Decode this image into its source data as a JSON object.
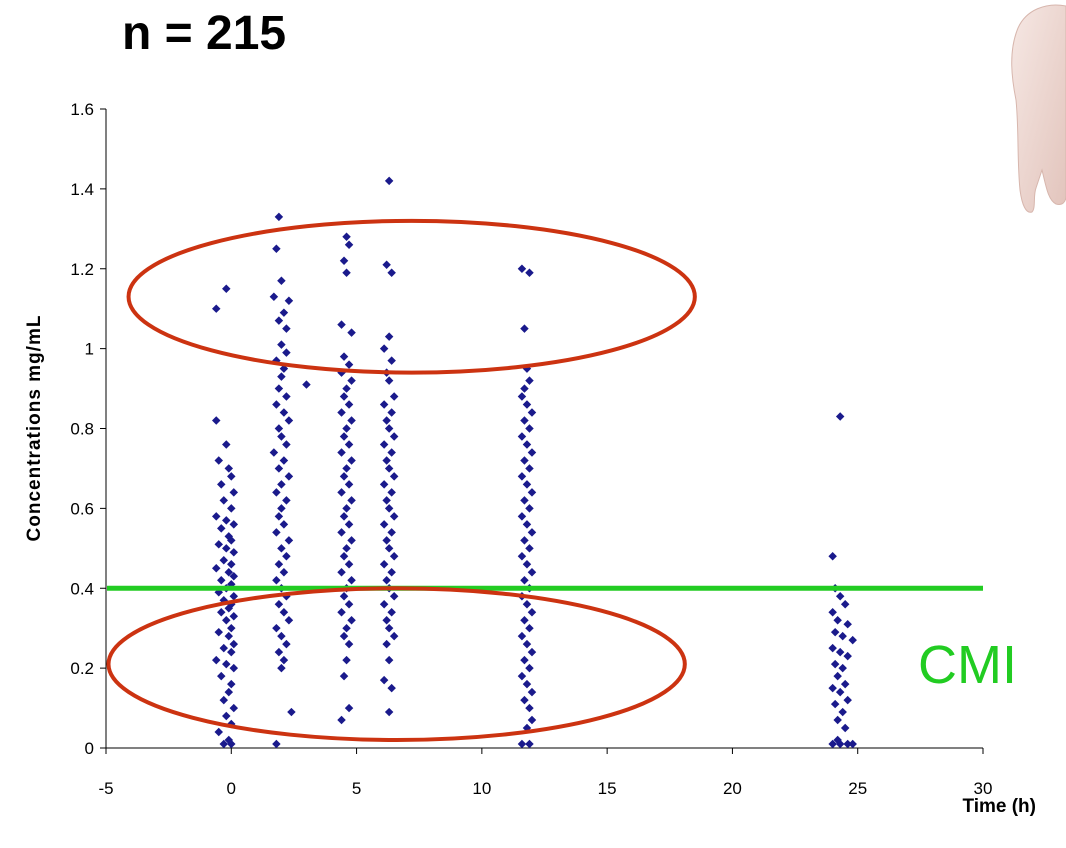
{
  "header": {
    "n_label": "n = 215"
  },
  "chart_data": {
    "type": "scatter",
    "title": "n = 215",
    "xlabel": "Time (h)",
    "ylabel": "Concentrations mg/mL",
    "xlim": [
      -5,
      30
    ],
    "ylim": [
      0,
      1.6
    ],
    "x_ticks": [
      -5,
      0,
      5,
      10,
      15,
      20,
      25,
      30
    ],
    "y_ticks": [
      0,
      0.2,
      0.4,
      0.6,
      0.8,
      1,
      1.2,
      1.4,
      1.6
    ],
    "y_tick_labels": [
      "0",
      "0.2",
      "0.4",
      "0.6",
      "0.8",
      "1",
      "1.2",
      "1.4",
      "1.6"
    ],
    "grid": false,
    "marker_color": "#1a1a8c",
    "threshold": {
      "y": 0.4,
      "label": "CMI",
      "color": "#22cc22"
    },
    "ellipse_color": "#cc3311",
    "highlight_regions": [
      {
        "cx": 7.2,
        "cy": 1.13,
        "rx": 11.3,
        "ry": 0.19
      },
      {
        "cx": 6.6,
        "cy": 0.21,
        "rx": 11.5,
        "ry": 0.19
      }
    ],
    "series": [
      {
        "points": [
          [
            -0.6,
            0.82
          ],
          [
            -0.2,
            0.76
          ],
          [
            -0.5,
            0.72
          ],
          [
            -0.1,
            0.7
          ],
          [
            0.0,
            0.68
          ],
          [
            -0.4,
            0.66
          ],
          [
            0.1,
            0.64
          ],
          [
            -0.3,
            0.62
          ],
          [
            0.0,
            0.6
          ],
          [
            -0.6,
            0.58
          ],
          [
            -0.2,
            0.57
          ],
          [
            0.1,
            0.56
          ],
          [
            -0.4,
            0.55
          ],
          [
            -0.1,
            0.53
          ],
          [
            0.0,
            0.52
          ],
          [
            -0.5,
            0.51
          ],
          [
            -0.2,
            0.5
          ],
          [
            0.1,
            0.49
          ],
          [
            -0.3,
            0.47
          ],
          [
            0.0,
            0.46
          ],
          [
            -0.6,
            0.45
          ],
          [
            -0.1,
            0.44
          ],
          [
            0.1,
            0.43
          ],
          [
            -0.4,
            0.42
          ],
          [
            0.0,
            0.41
          ],
          [
            -0.2,
            0.4
          ],
          [
            -0.5,
            0.39
          ],
          [
            0.1,
            0.38
          ],
          [
            -0.3,
            0.37
          ],
          [
            0.0,
            0.36
          ],
          [
            -0.1,
            0.35
          ],
          [
            -0.4,
            0.34
          ],
          [
            0.1,
            0.33
          ],
          [
            -0.2,
            0.32
          ],
          [
            0.0,
            0.3
          ],
          [
            -0.5,
            0.29
          ],
          [
            -0.1,
            0.28
          ],
          [
            0.1,
            0.26
          ],
          [
            -0.3,
            0.25
          ],
          [
            0.0,
            0.24
          ],
          [
            -0.6,
            0.22
          ],
          [
            -0.2,
            0.21
          ],
          [
            0.1,
            0.2
          ],
          [
            -0.4,
            0.18
          ],
          [
            0.0,
            0.16
          ],
          [
            -0.1,
            0.14
          ],
          [
            -0.3,
            0.12
          ],
          [
            0.1,
            0.1
          ],
          [
            -0.2,
            0.08
          ],
          [
            0.0,
            0.06
          ],
          [
            -0.5,
            0.04
          ],
          [
            -0.1,
            0.02
          ],
          [
            0.0,
            0.01
          ],
          [
            -0.3,
            0.01
          ],
          [
            -0.6,
            1.1
          ],
          [
            -0.2,
            1.15
          ],
          [
            1.9,
            1.33
          ],
          [
            1.8,
            1.25
          ],
          [
            2.0,
            1.17
          ],
          [
            1.7,
            1.13
          ],
          [
            2.3,
            1.12
          ],
          [
            2.1,
            1.09
          ],
          [
            1.9,
            1.07
          ],
          [
            2.2,
            1.05
          ],
          [
            2.0,
            1.01
          ],
          [
            2.2,
            0.99
          ],
          [
            1.8,
            0.97
          ],
          [
            2.1,
            0.95
          ],
          [
            3.0,
            0.91
          ],
          [
            2.0,
            0.93
          ],
          [
            1.9,
            0.9
          ],
          [
            2.2,
            0.88
          ],
          [
            1.8,
            0.86
          ],
          [
            2.1,
            0.84
          ],
          [
            2.3,
            0.82
          ],
          [
            1.9,
            0.8
          ],
          [
            2.0,
            0.78
          ],
          [
            2.2,
            0.76
          ],
          [
            1.7,
            0.74
          ],
          [
            2.1,
            0.72
          ],
          [
            1.9,
            0.7
          ],
          [
            2.3,
            0.68
          ],
          [
            2.0,
            0.66
          ],
          [
            1.8,
            0.64
          ],
          [
            2.2,
            0.62
          ],
          [
            2.0,
            0.6
          ],
          [
            1.9,
            0.58
          ],
          [
            2.1,
            0.56
          ],
          [
            1.8,
            0.54
          ],
          [
            2.3,
            0.52
          ],
          [
            2.0,
            0.5
          ],
          [
            2.2,
            0.48
          ],
          [
            1.9,
            0.46
          ],
          [
            2.1,
            0.44
          ],
          [
            1.8,
            0.42
          ],
          [
            2.0,
            0.4
          ],
          [
            2.2,
            0.38
          ],
          [
            1.9,
            0.36
          ],
          [
            2.1,
            0.34
          ],
          [
            2.3,
            0.32
          ],
          [
            1.8,
            0.3
          ],
          [
            2.0,
            0.28
          ],
          [
            2.2,
            0.26
          ],
          [
            1.9,
            0.24
          ],
          [
            2.1,
            0.22
          ],
          [
            2.0,
            0.2
          ],
          [
            2.4,
            0.09
          ],
          [
            1.8,
            0.01
          ],
          [
            4.6,
            1.28
          ],
          [
            4.7,
            1.26
          ],
          [
            4.5,
            1.22
          ],
          [
            4.6,
            1.19
          ],
          [
            4.4,
            1.06
          ],
          [
            4.8,
            1.04
          ],
          [
            4.5,
            0.98
          ],
          [
            4.7,
            0.96
          ],
          [
            4.4,
            0.94
          ],
          [
            4.8,
            0.92
          ],
          [
            4.6,
            0.9
          ],
          [
            4.5,
            0.88
          ],
          [
            4.7,
            0.86
          ],
          [
            4.4,
            0.84
          ],
          [
            4.8,
            0.82
          ],
          [
            4.6,
            0.8
          ],
          [
            4.5,
            0.78
          ],
          [
            4.7,
            0.76
          ],
          [
            4.4,
            0.74
          ],
          [
            4.8,
            0.72
          ],
          [
            4.6,
            0.7
          ],
          [
            4.5,
            0.68
          ],
          [
            4.7,
            0.66
          ],
          [
            4.4,
            0.64
          ],
          [
            4.8,
            0.62
          ],
          [
            4.6,
            0.6
          ],
          [
            4.5,
            0.58
          ],
          [
            4.7,
            0.56
          ],
          [
            4.4,
            0.54
          ],
          [
            4.8,
            0.52
          ],
          [
            4.6,
            0.5
          ],
          [
            4.5,
            0.48
          ],
          [
            4.7,
            0.46
          ],
          [
            4.4,
            0.44
          ],
          [
            4.8,
            0.42
          ],
          [
            4.6,
            0.4
          ],
          [
            4.5,
            0.38
          ],
          [
            4.7,
            0.36
          ],
          [
            4.4,
            0.34
          ],
          [
            4.8,
            0.32
          ],
          [
            4.6,
            0.3
          ],
          [
            4.5,
            0.28
          ],
          [
            4.7,
            0.26
          ],
          [
            4.6,
            0.22
          ],
          [
            4.5,
            0.18
          ],
          [
            4.4,
            0.07
          ],
          [
            4.7,
            0.1
          ],
          [
            6.3,
            1.42
          ],
          [
            6.2,
            1.21
          ],
          [
            6.4,
            1.19
          ],
          [
            6.3,
            1.03
          ],
          [
            6.1,
            1.0
          ],
          [
            6.4,
            0.97
          ],
          [
            6.2,
            0.94
          ],
          [
            6.3,
            0.92
          ],
          [
            6.5,
            0.88
          ],
          [
            6.1,
            0.86
          ],
          [
            6.4,
            0.84
          ],
          [
            6.2,
            0.82
          ],
          [
            6.3,
            0.8
          ],
          [
            6.5,
            0.78
          ],
          [
            6.1,
            0.76
          ],
          [
            6.4,
            0.74
          ],
          [
            6.2,
            0.72
          ],
          [
            6.3,
            0.7
          ],
          [
            6.5,
            0.68
          ],
          [
            6.1,
            0.66
          ],
          [
            6.4,
            0.64
          ],
          [
            6.2,
            0.62
          ],
          [
            6.3,
            0.6
          ],
          [
            6.5,
            0.58
          ],
          [
            6.1,
            0.56
          ],
          [
            6.4,
            0.54
          ],
          [
            6.2,
            0.52
          ],
          [
            6.3,
            0.5
          ],
          [
            6.5,
            0.48
          ],
          [
            6.1,
            0.46
          ],
          [
            6.4,
            0.44
          ],
          [
            6.2,
            0.42
          ],
          [
            6.3,
            0.4
          ],
          [
            6.5,
            0.38
          ],
          [
            6.1,
            0.36
          ],
          [
            6.4,
            0.34
          ],
          [
            6.2,
            0.32
          ],
          [
            6.3,
            0.3
          ],
          [
            6.5,
            0.28
          ],
          [
            6.2,
            0.26
          ],
          [
            6.3,
            0.22
          ],
          [
            6.1,
            0.17
          ],
          [
            6.4,
            0.15
          ],
          [
            6.3,
            0.09
          ],
          [
            11.6,
            1.2
          ],
          [
            11.9,
            1.19
          ],
          [
            11.7,
            1.05
          ],
          [
            11.8,
            0.95
          ],
          [
            11.9,
            0.92
          ],
          [
            11.7,
            0.9
          ],
          [
            11.6,
            0.88
          ],
          [
            11.8,
            0.86
          ],
          [
            12.0,
            0.84
          ],
          [
            11.7,
            0.82
          ],
          [
            11.9,
            0.8
          ],
          [
            11.6,
            0.78
          ],
          [
            11.8,
            0.76
          ],
          [
            12.0,
            0.74
          ],
          [
            11.7,
            0.72
          ],
          [
            11.9,
            0.7
          ],
          [
            11.6,
            0.68
          ],
          [
            11.8,
            0.66
          ],
          [
            12.0,
            0.64
          ],
          [
            11.7,
            0.62
          ],
          [
            11.9,
            0.6
          ],
          [
            11.6,
            0.58
          ],
          [
            11.8,
            0.56
          ],
          [
            12.0,
            0.54
          ],
          [
            11.7,
            0.52
          ],
          [
            11.9,
            0.5
          ],
          [
            11.6,
            0.48
          ],
          [
            11.8,
            0.46
          ],
          [
            12.0,
            0.44
          ],
          [
            11.7,
            0.42
          ],
          [
            11.9,
            0.4
          ],
          [
            11.6,
            0.38
          ],
          [
            11.8,
            0.36
          ],
          [
            12.0,
            0.34
          ],
          [
            11.7,
            0.32
          ],
          [
            11.9,
            0.3
          ],
          [
            11.6,
            0.28
          ],
          [
            11.8,
            0.26
          ],
          [
            12.0,
            0.24
          ],
          [
            11.7,
            0.22
          ],
          [
            11.9,
            0.2
          ],
          [
            11.6,
            0.18
          ],
          [
            11.8,
            0.16
          ],
          [
            12.0,
            0.14
          ],
          [
            11.7,
            0.12
          ],
          [
            11.9,
            0.1
          ],
          [
            12.0,
            0.07
          ],
          [
            11.8,
            0.05
          ],
          [
            11.6,
            0.01
          ],
          [
            11.9,
            0.01
          ],
          [
            24.3,
            0.83
          ],
          [
            24.0,
            0.48
          ],
          [
            24.1,
            0.4
          ],
          [
            24.3,
            0.38
          ],
          [
            24.5,
            0.36
          ],
          [
            24.0,
            0.34
          ],
          [
            24.2,
            0.32
          ],
          [
            24.6,
            0.31
          ],
          [
            24.1,
            0.29
          ],
          [
            24.4,
            0.28
          ],
          [
            24.8,
            0.27
          ],
          [
            24.0,
            0.25
          ],
          [
            24.3,
            0.24
          ],
          [
            24.6,
            0.23
          ],
          [
            24.1,
            0.21
          ],
          [
            24.4,
            0.2
          ],
          [
            24.2,
            0.18
          ],
          [
            24.5,
            0.16
          ],
          [
            24.0,
            0.15
          ],
          [
            24.3,
            0.14
          ],
          [
            24.6,
            0.12
          ],
          [
            24.1,
            0.11
          ],
          [
            24.4,
            0.09
          ],
          [
            24.2,
            0.07
          ],
          [
            24.5,
            0.05
          ],
          [
            24.0,
            0.01
          ],
          [
            24.3,
            0.01
          ],
          [
            24.6,
            0.01
          ],
          [
            24.8,
            0.01
          ],
          [
            24.2,
            0.02
          ]
        ]
      }
    ]
  }
}
